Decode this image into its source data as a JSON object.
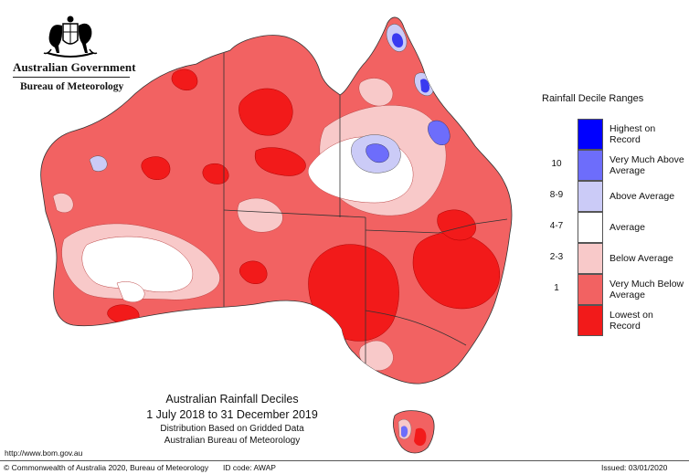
{
  "header": {
    "government": "Australian Government",
    "bureau": "Bureau of Meteorology"
  },
  "legend": {
    "title": "Rainfall Decile Ranges",
    "items": [
      {
        "range": "",
        "label": "Highest on Record",
        "color": "#0000ff"
      },
      {
        "range": "10",
        "label": "Very Much Above Average",
        "color": "#6d6dfb"
      },
      {
        "range": "8-9",
        "label": "Above Average",
        "color": "#cbcbf7"
      },
      {
        "range": "4-7",
        "label": "Average",
        "color": "#ffffff"
      },
      {
        "range": "2-3",
        "label": "Below Average",
        "color": "#f8c9c9"
      },
      {
        "range": "1",
        "label": "Very Much Below Average",
        "color": "#f26262"
      },
      {
        "range": "",
        "label": "Lowest on Record",
        "color": "#f21a1a"
      }
    ]
  },
  "map_titles": {
    "title": "Australian Rainfall Deciles",
    "period": "1 July 2018 to 31 December 2019",
    "line3": "Distribution Based on Gridded Data",
    "line4": "Australian Bureau of Meteorology"
  },
  "footer": {
    "url": "http://www.bom.gov.au",
    "copyright": "© Commonwealth of Australia 2020, Bureau of Meteorology",
    "id_code": "ID code: AWAP",
    "issued": "Issued: 03/01/2020"
  }
}
